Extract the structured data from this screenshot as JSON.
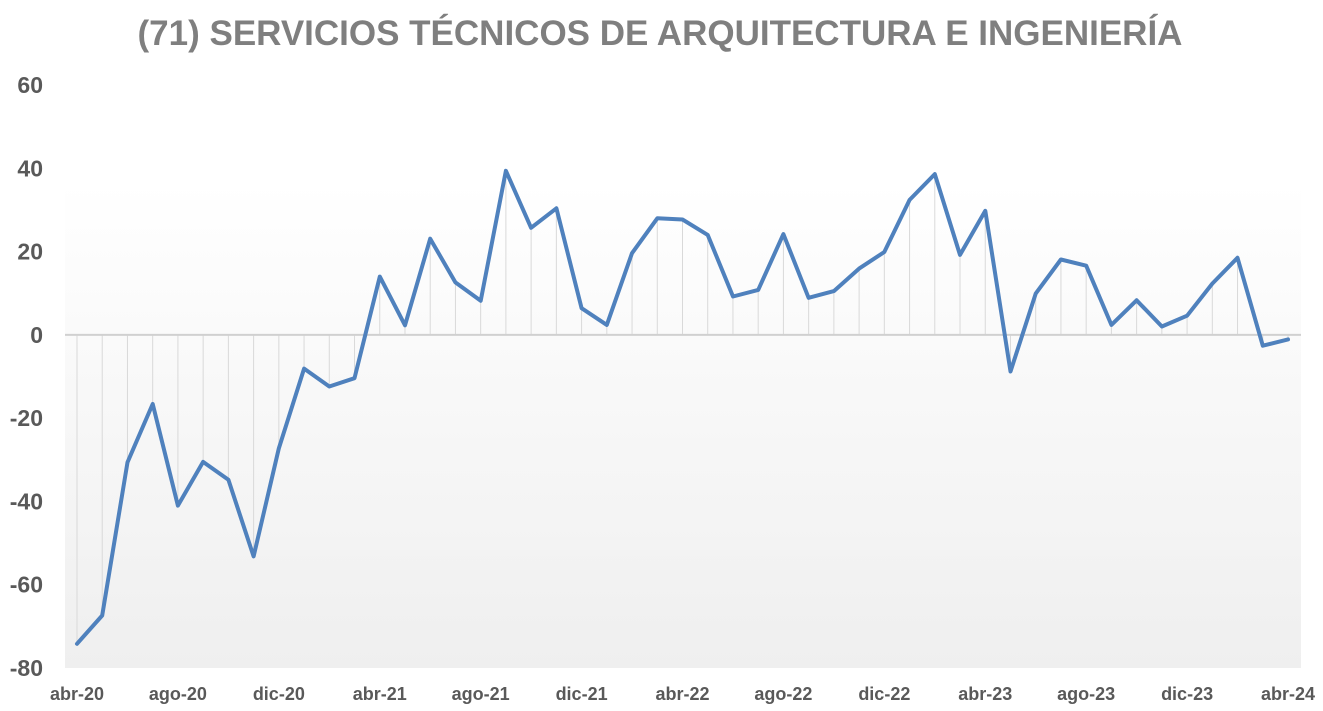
{
  "chart_data": {
    "type": "line",
    "title": "(71) SERVICIOS TÉCNICOS DE ARQUITECTURA E INGENIERÍA",
    "xlabel": "",
    "ylabel": "",
    "ylim": [
      -80,
      60
    ],
    "yticks": [
      60,
      40,
      20,
      0,
      -20,
      -40,
      -60,
      -80
    ],
    "xtick_labels": [
      "abr-20",
      "ago-20",
      "dic-20",
      "abr-21",
      "ago-21",
      "dic-21",
      "abr-22",
      "ago-22",
      "dic-22",
      "abr-23",
      "ago-23",
      "dic-23",
      "abr-24"
    ],
    "x": [
      "abr-20",
      "may-20",
      "jun-20",
      "jul-20",
      "ago-20",
      "sep-20",
      "oct-20",
      "nov-20",
      "dic-20",
      "ene-21",
      "feb-21",
      "mar-21",
      "abr-21",
      "may-21",
      "jun-21",
      "jul-21",
      "ago-21",
      "sep-21",
      "oct-21",
      "nov-21",
      "dic-21",
      "ene-22",
      "feb-22",
      "mar-22",
      "abr-22",
      "may-22",
      "jun-22",
      "jul-22",
      "ago-22",
      "sep-22",
      "oct-22",
      "nov-22",
      "dic-22",
      "ene-23",
      "feb-23",
      "mar-23",
      "abr-23",
      "may-23",
      "jun-23",
      "jul-23",
      "ago-23",
      "sep-23",
      "oct-23",
      "nov-23",
      "dic-23",
      "ene-24",
      "feb-24",
      "mar-24",
      "abr-24"
    ],
    "series": [
      {
        "name": "",
        "color": "#4f81bd",
        "values": [
          -74.2,
          -67.4,
          -30.6,
          -16.6,
          -41.0,
          -30.5,
          -34.8,
          -53.2,
          -27.3,
          -8.1,
          -12.4,
          -10.4,
          14.0,
          2.3,
          23.1,
          12.6,
          8.2,
          39.4,
          25.7,
          30.4,
          6.4,
          2.4,
          19.6,
          28.0,
          27.7,
          24.0,
          9.2,
          10.8,
          24.2,
          8.9,
          10.5,
          15.9,
          19.9,
          32.4,
          38.6,
          19.2,
          29.8,
          -8.8,
          9.9,
          18.1,
          16.6,
          2.4,
          8.3,
          2.0,
          4.6,
          12.3,
          18.5,
          -2.6,
          -1.1
        ]
      }
    ],
    "grid": false,
    "drop_lines": true,
    "legend": "none"
  }
}
